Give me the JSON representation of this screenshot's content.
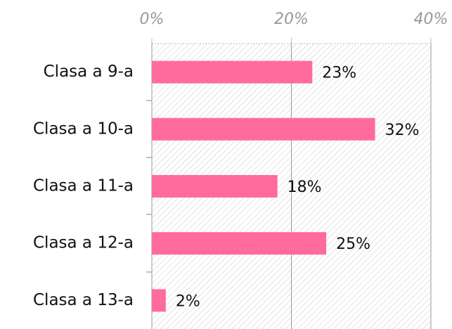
{
  "chart_data": {
    "type": "bar",
    "orientation": "horizontal",
    "categories": [
      "Clasa a 9-a",
      "Clasa a 10-a",
      "Clasa a 11-a",
      "Clasa a 12-a",
      "Clasa a 13-a"
    ],
    "values": [
      23,
      32,
      18,
      25,
      2
    ],
    "value_labels": [
      "23%",
      "32%",
      "18%",
      "25%",
      "2%"
    ],
    "color": "#ff6b9c",
    "xlim": [
      0,
      40
    ],
    "xticks": [
      {
        "value": 0,
        "label": "0%"
      },
      {
        "value": 20,
        "label": "20%"
      },
      {
        "value": 40,
        "label": "40%"
      }
    ],
    "grid": true
  }
}
